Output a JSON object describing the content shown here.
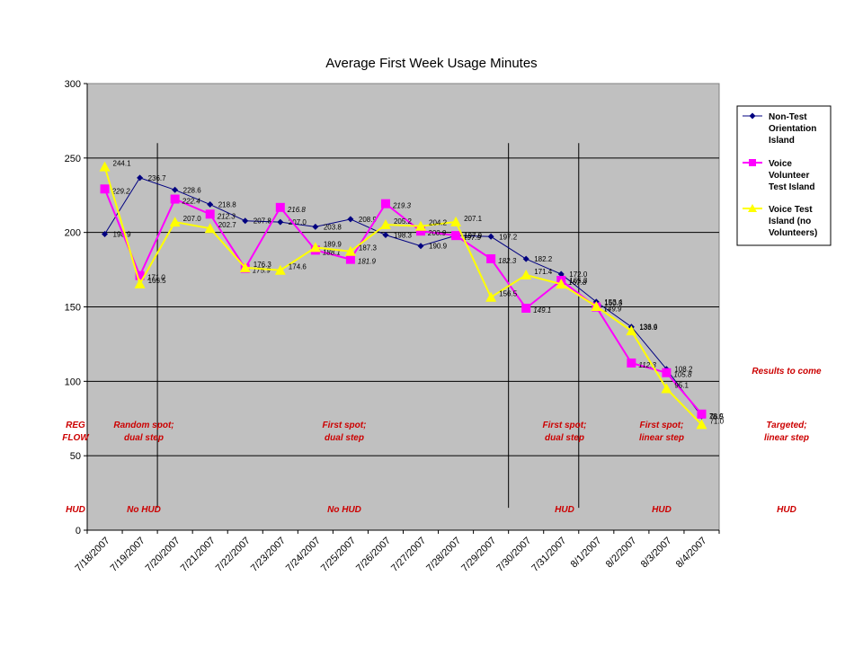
{
  "chart_data": {
    "type": "line",
    "title": "Average First Week Usage Minutes",
    "xlabel": "",
    "ylabel": "",
    "ylim": [
      0,
      300
    ],
    "yticks": [
      0,
      50,
      100,
      150,
      200,
      250,
      300
    ],
    "grid": true,
    "legend_position": "right",
    "categories": [
      "7/18/2007",
      "7/19/2007",
      "7/20/2007",
      "7/21/2007",
      "7/22/2007",
      "7/23/2007",
      "7/24/2007",
      "7/25/2007",
      "7/26/2007",
      "7/27/2007",
      "7/28/2007",
      "7/29/2007",
      "7/30/2007",
      "7/31/2007",
      "8/1/2007",
      "8/2/2007",
      "8/3/2007",
      "8/4/2007"
    ],
    "series": [
      {
        "name": "Non-Test Orientation Island",
        "color": "#000080",
        "marker": "diamond",
        "values": [
          198.9,
          236.7,
          228.6,
          218.8,
          207.8,
          207.0,
          203.8,
          208.9,
          198.3,
          190.9,
          197.9,
          197.2,
          182.2,
          172.0,
          153.4,
          136.6,
          108.2,
          76.5
        ],
        "labels": [
          "198.9",
          "236.7",
          "228.6",
          "218.8",
          "207.8",
          "207.0",
          "203.8",
          "208.9",
          "198.3",
          "190.9",
          "197.9",
          "197.2",
          "182.2",
          "172.0",
          "153.4",
          "136.6",
          "108.2",
          "76.5"
        ]
      },
      {
        "name": "Voice Volunteer Test Island",
        "color": "#ff00ff",
        "marker": "square",
        "values": [
          229.2,
          171.0,
          222.4,
          212.3,
          175.9,
          216.8,
          188.1,
          181.9,
          219.3,
          200.9,
          197.9,
          182.3,
          149.1,
          167.8,
          149.9,
          112.3,
          105.8,
          78.0
        ],
        "labels": [
          "229.2",
          "171.0",
          "222.4",
          "212.3",
          "175.9",
          "216.8",
          "188.1",
          "181.9",
          "219.3",
          "200.9",
          "197.9",
          "182.3",
          "149.1",
          "167.8",
          "149.9",
          "112.3",
          "105.8",
          "78.0"
        ]
      },
      {
        "name": "Voice Test Island (no Volunteers)",
        "color": "#ffff00",
        "marker": "triangle",
        "values": [
          244.1,
          165.5,
          207.0,
          202.7,
          176.3,
          174.6,
          189.9,
          187.3,
          205.2,
          204.2,
          207.1,
          156.5,
          171.4,
          165.3,
          150.3,
          133.9,
          95.1,
          71.0
        ],
        "labels": [
          "244.1",
          "165.5",
          "207.0",
          "202.7",
          "176.3",
          "174.6",
          "189.9",
          "187.3",
          "205.2",
          "204.2",
          "207.1",
          "156.5",
          "171.4",
          "165.3",
          "150.3",
          "133.9",
          "95.1",
          "71.0"
        ]
      }
    ],
    "annotations": [
      {
        "text": "REG",
        "section": "regflow",
        "row": 1
      },
      {
        "text": "FLOW",
        "section": "regflow",
        "row": 2
      },
      {
        "text": "HUD",
        "section": "regflow",
        "row": 3
      },
      {
        "text": "Random spot;",
        "section": "random",
        "row": 1
      },
      {
        "text": "dual step",
        "section": "random",
        "row": 2
      },
      {
        "text": "No HUD",
        "section": "random",
        "row": 3
      },
      {
        "text": "First spot;",
        "section": "first1",
        "row": 1
      },
      {
        "text": "dual step",
        "section": "first1",
        "row": 2
      },
      {
        "text": "No HUD",
        "section": "first1",
        "row": 3
      },
      {
        "text": "First spot;",
        "section": "first2",
        "row": 1
      },
      {
        "text": "dual step",
        "section": "first2",
        "row": 2
      },
      {
        "text": "HUD",
        "section": "first2",
        "row": 3
      },
      {
        "text": "First spot;",
        "section": "linear",
        "row": 1
      },
      {
        "text": "linear step",
        "section": "linear",
        "row": 2
      },
      {
        "text": "HUD",
        "section": "linear",
        "row": 3
      },
      {
        "text": "Results to come",
        "section": "right",
        "row": 0
      },
      {
        "text": "Targeted;",
        "section": "right",
        "row": 1
      },
      {
        "text": "linear step",
        "section": "right",
        "row": 2
      },
      {
        "text": "HUD",
        "section": "right",
        "row": 3
      }
    ]
  }
}
